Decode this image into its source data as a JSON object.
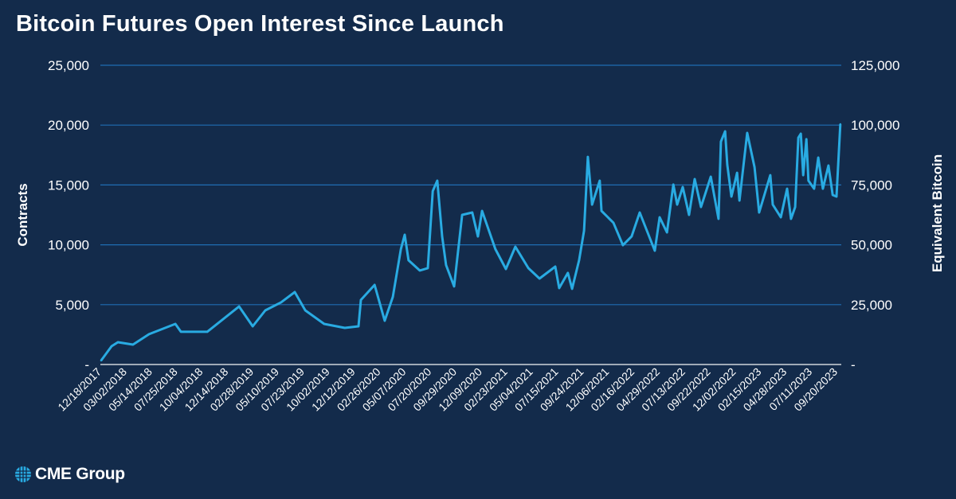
{
  "chart_data": {
    "type": "line",
    "title": "Bitcoin Futures Open Interest Since Launch",
    "ylabel": "Contracts",
    "y2label": "Equivalent Bitcoin",
    "ylim": [
      0,
      25000
    ],
    "y2lim": [
      0,
      125000
    ],
    "yticks": [
      "-",
      "5,000",
      "10,000",
      "15,000",
      "20,000",
      "25,000"
    ],
    "y2ticks": [
      "-",
      "25,000",
      "50,000",
      "75,000",
      "100,000",
      "125,000"
    ],
    "xticks": [
      "12/18/2017",
      "03/02/2018",
      "05/14/2018",
      "07/25/2018",
      "10/04/2018",
      "12/14/2018",
      "02/28/2019",
      "05/10/2019",
      "07/23/2019",
      "10/02/2019",
      "12/12/2019",
      "02/26/2020",
      "05/07/2020",
      "07/20/2020",
      "09/29/2020",
      "12/09/2020",
      "02/23/2021",
      "05/04/2021",
      "07/15/2021",
      "09/24/2021",
      "12/06/2021",
      "02/16/2022",
      "04/29/2022",
      "07/13/2022",
      "09/22/2022",
      "12/02/2022",
      "02/15/2023",
      "04/28/2023",
      "07/11/2023",
      "09/20/2023"
    ],
    "grid": true,
    "line_color": "#29abe2",
    "grid_color": "#1f6db3",
    "background": "#132b4b",
    "series": [
      {
        "points": [
          [
            "2017-12-20",
            330
          ],
          [
            "2018-01-19",
            1530
          ],
          [
            "2018-02-06",
            1860
          ],
          [
            "2018-03-21",
            1660
          ],
          [
            "2018-05-06",
            2530
          ],
          [
            "2018-07-20",
            3390
          ],
          [
            "2018-08-05",
            2730
          ],
          [
            "2018-10-19",
            2730
          ],
          [
            "2019-01-18",
            4850
          ],
          [
            "2019-02-26",
            3190
          ],
          [
            "2019-04-03",
            4520
          ],
          [
            "2019-05-18",
            5190
          ],
          [
            "2019-06-26",
            6050
          ],
          [
            "2019-07-26",
            4520
          ],
          [
            "2019-09-18",
            3390
          ],
          [
            "2019-11-16",
            3060
          ],
          [
            "2019-12-25",
            3190
          ],
          [
            "2020-01-01",
            5390
          ],
          [
            "2020-02-09",
            6650
          ],
          [
            "2020-03-09",
            3660
          ],
          [
            "2020-04-01",
            5650
          ],
          [
            "2020-04-24",
            9640
          ],
          [
            "2020-05-05",
            10840
          ],
          [
            "2020-05-16",
            8710
          ],
          [
            "2020-06-17",
            7850
          ],
          [
            "2020-07-10",
            8050
          ],
          [
            "2020-07-24",
            14490
          ],
          [
            "2020-08-06",
            15360
          ],
          [
            "2020-08-20",
            10700
          ],
          [
            "2020-08-31",
            8310
          ],
          [
            "2020-09-23",
            6520
          ],
          [
            "2020-10-16",
            12500
          ],
          [
            "2020-11-14",
            12700
          ],
          [
            "2020-11-30",
            10700
          ],
          [
            "2020-12-12",
            12830
          ],
          [
            "2021-01-19",
            9640
          ],
          [
            "2021-02-18",
            7980
          ],
          [
            "2021-03-17",
            9840
          ],
          [
            "2021-04-23",
            8050
          ],
          [
            "2021-05-25",
            7180
          ],
          [
            "2021-07-09",
            8180
          ],
          [
            "2021-07-20",
            6380
          ],
          [
            "2021-08-14",
            7650
          ],
          [
            "2021-08-26",
            6320
          ],
          [
            "2021-09-15",
            8710
          ],
          [
            "2021-09-29",
            11170
          ],
          [
            "2021-10-10",
            17350
          ],
          [
            "2021-10-22",
            13360
          ],
          [
            "2021-11-13",
            15360
          ],
          [
            "2021-11-18",
            12830
          ],
          [
            "2021-12-22",
            11840
          ],
          [
            "2022-01-18",
            9970
          ],
          [
            "2022-02-12",
            10700
          ],
          [
            "2022-03-07",
            12700
          ],
          [
            "2022-04-19",
            9510
          ],
          [
            "2022-05-03",
            12300
          ],
          [
            "2022-05-24",
            11040
          ],
          [
            "2022-06-11",
            15030
          ],
          [
            "2022-06-22",
            13360
          ],
          [
            "2022-07-08",
            14830
          ],
          [
            "2022-07-26",
            12500
          ],
          [
            "2022-08-11",
            15490
          ],
          [
            "2022-08-29",
            13160
          ],
          [
            "2022-09-26",
            15690
          ],
          [
            "2022-10-18",
            12170
          ],
          [
            "2022-10-25",
            18620
          ],
          [
            "2022-11-06",
            19480
          ],
          [
            "2022-11-12",
            16690
          ],
          [
            "2022-11-24",
            14030
          ],
          [
            "2022-12-10",
            16020
          ],
          [
            "2022-12-17",
            13700
          ],
          [
            "2023-01-08",
            19350
          ],
          [
            "2023-01-29",
            16490
          ],
          [
            "2023-02-11",
            12700
          ],
          [
            "2023-03-15",
            15820
          ],
          [
            "2023-03-22",
            13360
          ],
          [
            "2023-04-14",
            12300
          ],
          [
            "2023-05-02",
            14690
          ],
          [
            "2023-05-13",
            12170
          ],
          [
            "2023-05-25",
            13160
          ],
          [
            "2023-06-03",
            18950
          ],
          [
            "2023-06-10",
            19280
          ],
          [
            "2023-06-17",
            15820
          ],
          [
            "2023-06-26",
            18820
          ],
          [
            "2023-07-02",
            15360
          ],
          [
            "2023-07-18",
            14690
          ],
          [
            "2023-07-30",
            17290
          ],
          [
            "2023-08-12",
            14690
          ],
          [
            "2023-08-28",
            16620
          ],
          [
            "2023-09-09",
            14160
          ],
          [
            "2023-09-20",
            14030
          ],
          [
            "2023-10-01",
            20080
          ]
        ]
      }
    ]
  },
  "logo": {
    "text": "CME Group",
    "icon": "globe-icon",
    "color": "#29abe2"
  }
}
